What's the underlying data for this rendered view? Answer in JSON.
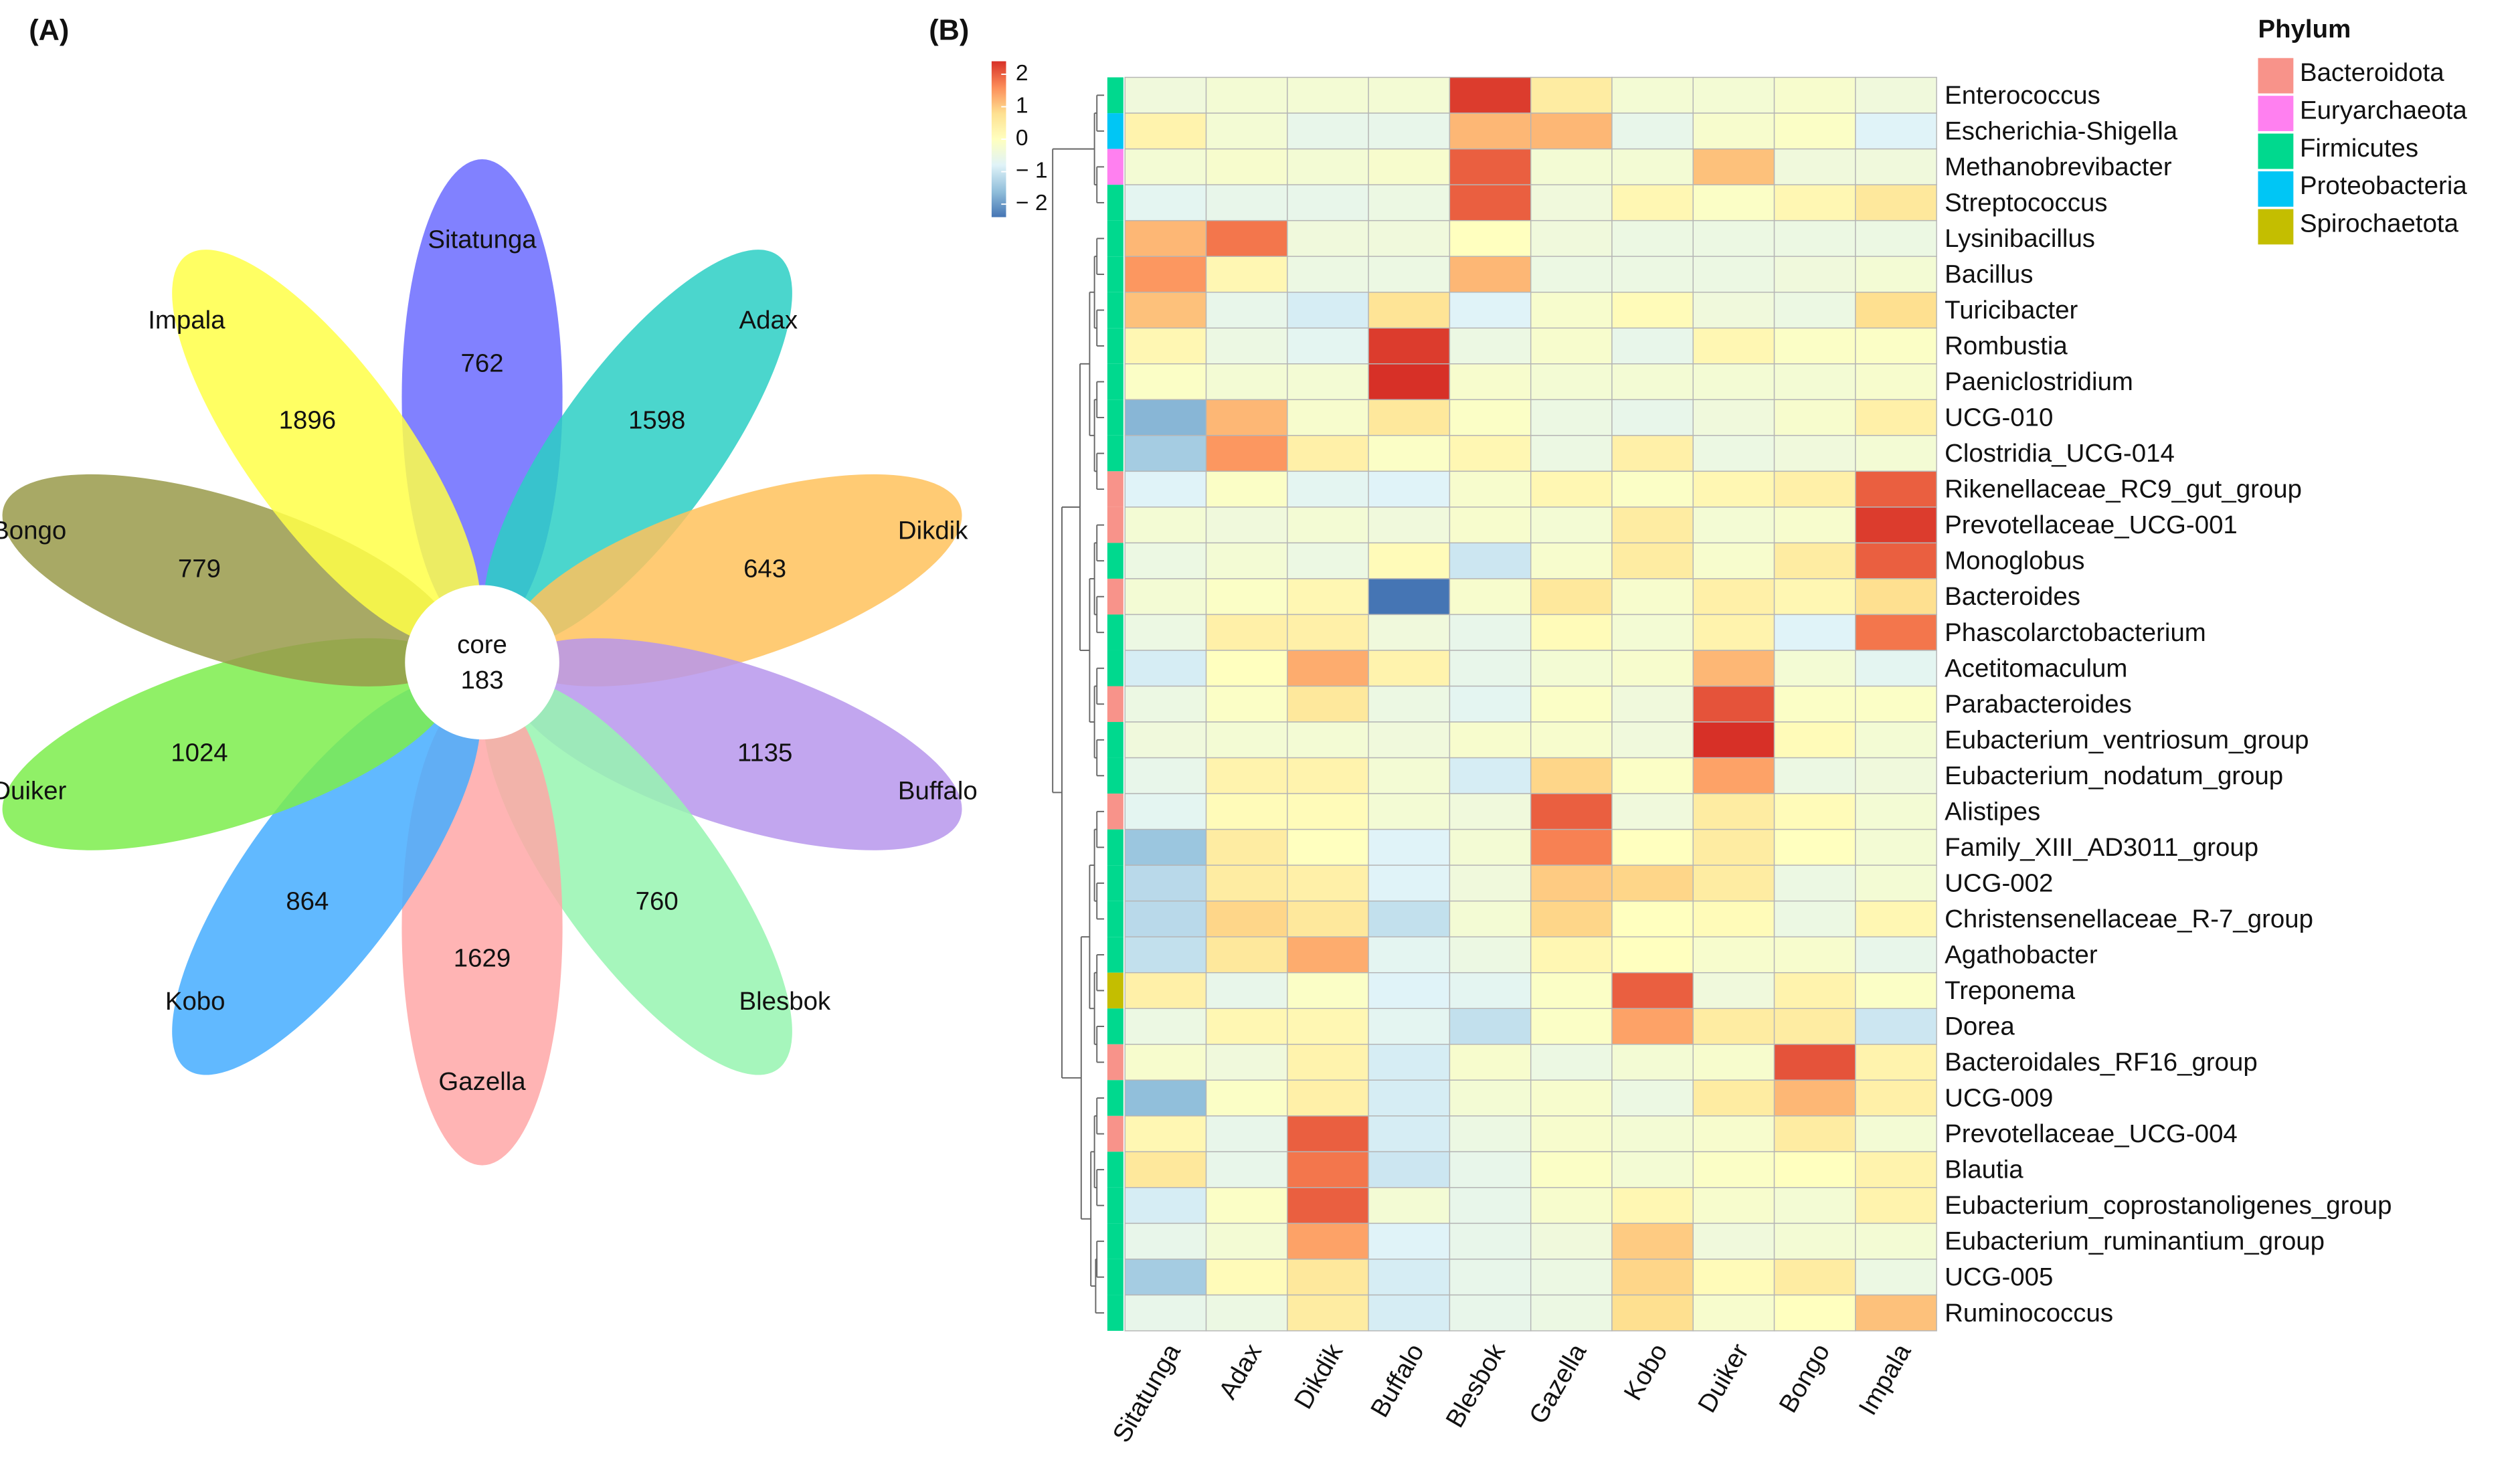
{
  "chart_data": [
    {
      "type": "flower",
      "panel_label": "(A)",
      "core_label": "core",
      "core_value": 183,
      "categories": [
        "Sitatunga",
        "Adax",
        "Dikdik",
        "Buffalo",
        "Blesbok",
        "Gazella",
        "Kobo",
        "Duiker",
        "Bongo",
        "Impala"
      ],
      "values": [
        762,
        1598,
        643,
        1135,
        760,
        1629,
        864,
        1024,
        779,
        1896
      ],
      "colors": [
        "#6b6bff",
        "#2ccfc4",
        "#ffc25c",
        "#b797ec",
        "#97f5b0",
        "#ffa7a7",
        "#45adff",
        "#7ced4c",
        "#999a4a",
        "#ffff48"
      ]
    },
    {
      "type": "heatmap",
      "panel_label": "(B)",
      "columns": [
        "Sitatunga",
        "Adax",
        "Dikdik",
        "Buffalo",
        "Blesbok",
        "Gazella",
        "Kobo",
        "Duiker",
        "Bongo",
        "Impala"
      ],
      "rows": [
        "Enterococcus",
        "Escherichia-Shigella",
        "Methanobrevibacter",
        "Streptococcus",
        "Lysinibacillus",
        "Bacillus",
        "Turicibacter",
        "Rombustia",
        "Paeniclostridium",
        "UCG-010",
        "Clostridia_UCG-014",
        "Rikenellaceae_RC9_gut_group",
        "Prevotellaceae_UCG-001",
        "Monoglobus",
        "Bacteroides",
        "Phascolarctobacterium",
        "Acetitomaculum",
        "Parabacteroides",
        "Eubacterium_ventriosum_group",
        "Eubacterium_nodatum_group",
        "Alistipes",
        "Family_XIII_AD3011_group",
        "UCG-002",
        "Christensenellaceae_R-7_group",
        "Agathobacter",
        "Treponema",
        "Dorea",
        "Bacteroidales_RF16_group",
        "UCG-009",
        "Prevotellaceae_UCG-004",
        "Blautia",
        "Eubacterium_coprostanoligenes_group",
        "Eubacterium_ruminantium_group",
        "UCG-005",
        "Ruminococcus"
      ],
      "values": [
        [
          -0.4,
          -0.3,
          -0.3,
          -0.3,
          2.3,
          0.5,
          -0.3,
          -0.3,
          -0.2,
          -0.4
        ],
        [
          0.3,
          -0.3,
          -0.6,
          -0.6,
          1.2,
          1.2,
          -0.6,
          -0.2,
          -0.1,
          -0.8
        ],
        [
          -0.3,
          -0.2,
          -0.3,
          -0.2,
          2.0,
          -0.3,
          -0.3,
          1.1,
          -0.4,
          -0.4
        ],
        [
          -0.7,
          -0.6,
          -0.6,
          -0.5,
          2.0,
          -0.4,
          0.2,
          -0.1,
          0.2,
          0.6
        ],
        [
          1.2,
          1.8,
          -0.4,
          -0.4,
          0.0,
          -0.4,
          -0.5,
          -0.5,
          -0.5,
          -0.5
        ],
        [
          1.5,
          0.2,
          -0.5,
          -0.5,
          1.2,
          -0.5,
          -0.5,
          -0.5,
          -0.4,
          -0.3
        ],
        [
          1.1,
          -0.6,
          -0.9,
          0.7,
          -0.8,
          -0.2,
          0.1,
          -0.4,
          -0.5,
          0.8
        ],
        [
          0.2,
          -0.5,
          -0.7,
          2.3,
          -0.5,
          -0.2,
          -0.6,
          0.2,
          -0.1,
          -0.1
        ],
        [
          -0.1,
          -0.3,
          -0.3,
          2.5,
          -0.2,
          -0.3,
          -0.3,
          -0.3,
          -0.3,
          -0.2
        ],
        [
          -1.7,
          1.2,
          -0.2,
          0.6,
          -0.1,
          -0.5,
          -0.6,
          -0.4,
          -0.2,
          0.4
        ],
        [
          -1.4,
          1.5,
          0.4,
          -0.1,
          0.2,
          -0.5,
          0.4,
          -0.5,
          -0.4,
          -0.3
        ],
        [
          -0.8,
          -0.1,
          -0.7,
          -0.8,
          -0.2,
          0.2,
          -0.1,
          0.2,
          0.4,
          2.0
        ],
        [
          -0.3,
          -0.4,
          -0.3,
          -0.4,
          -0.2,
          -0.3,
          0.5,
          -0.3,
          -0.2,
          2.3
        ],
        [
          -0.5,
          -0.3,
          -0.5,
          0.1,
          -1.0,
          -0.2,
          0.5,
          -0.2,
          0.5,
          2.0
        ],
        [
          -0.3,
          -0.1,
          0.2,
          -2.5,
          -0.2,
          0.6,
          -0.2,
          0.4,
          0.2,
          0.8
        ],
        [
          -0.5,
          0.4,
          0.4,
          -0.4,
          -0.6,
          0.1,
          -0.3,
          0.3,
          -0.8,
          1.8
        ],
        [
          -0.9,
          0.0,
          1.3,
          0.3,
          -0.6,
          -0.3,
          -0.2,
          1.2,
          -0.3,
          -0.7
        ],
        [
          -0.5,
          -0.1,
          0.6,
          -0.5,
          -0.7,
          -0.1,
          -0.4,
          2.1,
          -0.1,
          -0.1
        ],
        [
          -0.4,
          -0.3,
          -0.3,
          -0.4,
          -0.2,
          -0.2,
          -0.4,
          2.5,
          0.1,
          -0.3
        ],
        [
          -0.6,
          0.3,
          0.3,
          -0.3,
          -0.9,
          0.9,
          -0.1,
          1.4,
          -0.5,
          -0.4
        ],
        [
          -0.7,
          0.1,
          0.1,
          -0.3,
          -0.4,
          2.0,
          -0.4,
          0.5,
          0.1,
          -0.3
        ],
        [
          -1.5,
          0.5,
          0.0,
          -0.8,
          -0.3,
          1.7,
          0.0,
          0.5,
          0.0,
          -0.3
        ],
        [
          -1.2,
          0.5,
          0.4,
          -0.8,
          -0.4,
          1.0,
          0.9,
          0.5,
          -0.5,
          -0.3
        ],
        [
          -1.2,
          0.9,
          0.6,
          -1.1,
          -0.3,
          0.9,
          0.0,
          0.1,
          -0.5,
          0.2
        ],
        [
          -1.1,
          0.6,
          1.3,
          -0.7,
          -0.5,
          0.2,
          0.0,
          -0.2,
          -0.2,
          -0.6
        ],
        [
          0.4,
          -0.6,
          -0.1,
          -0.8,
          -0.7,
          -0.1,
          2.0,
          -0.4,
          0.3,
          -0.1
        ],
        [
          -0.5,
          0.2,
          0.2,
          -0.7,
          -1.1,
          -0.1,
          1.4,
          0.5,
          0.5,
          -1.0
        ],
        [
          -0.2,
          -0.4,
          0.3,
          -0.9,
          -0.2,
          -0.5,
          -0.3,
          -0.2,
          2.1,
          0.3
        ],
        [
          -1.6,
          -0.1,
          0.4,
          -0.9,
          -0.3,
          -0.2,
          -0.5,
          0.5,
          1.2,
          0.4
        ],
        [
          0.2,
          -0.6,
          2.0,
          -0.9,
          -0.5,
          -0.2,
          -0.3,
          -0.2,
          0.5,
          -0.3
        ],
        [
          0.6,
          -0.6,
          1.8,
          -1.0,
          -0.6,
          -0.1,
          -0.3,
          -0.1,
          0.0,
          0.3
        ],
        [
          -0.9,
          -0.1,
          2.0,
          -0.3,
          -0.6,
          -0.2,
          0.2,
          -0.2,
          -0.3,
          0.3
        ],
        [
          -0.6,
          -0.3,
          1.4,
          -0.8,
          -0.6,
          -0.4,
          1.0,
          -0.4,
          -0.3,
          -0.3
        ],
        [
          -1.4,
          0.1,
          0.6,
          -0.9,
          -0.6,
          -0.5,
          0.9,
          0.1,
          0.5,
          -0.5
        ],
        [
          -0.6,
          -0.5,
          0.5,
          -0.9,
          -0.6,
          -0.5,
          0.8,
          -0.2,
          0.0,
          1.1
        ]
      ],
      "colorlim": [
        -2.4,
        2.4
      ],
      "colorticks": [
        2,
        1,
        0,
        {
          "value": -1,
          "label": "− 1"
        },
        {
          "value": -2,
          "label": "− 2"
        }
      ],
      "palette": [
        "#4575b4",
        "#91bfdb",
        "#e0f3f8",
        "#ffffbf",
        "#fee090",
        "#fc8d59",
        "#d73027"
      ],
      "legend_title": "Phylum",
      "groups": [
        {
          "name": "Bacteroidota",
          "color": "#f8938a"
        },
        {
          "name": "Euryarchaeota",
          "color": "#ff80f0"
        },
        {
          "name": "Firmicutes",
          "color": "#00d98e"
        },
        {
          "name": "Proteobacteria",
          "color": "#00c6f5"
        },
        {
          "name": "Spirochaetota",
          "color": "#c4be00"
        }
      ],
      "row_groups": [
        "Firmicutes",
        "Proteobacteria",
        "Euryarchaeota",
        "Firmicutes",
        "Firmicutes",
        "Firmicutes",
        "Firmicutes",
        "Firmicutes",
        "Firmicutes",
        "Firmicutes",
        "Firmicutes",
        "Bacteroidota",
        "Bacteroidota",
        "Firmicutes",
        "Bacteroidota",
        "Firmicutes",
        "Firmicutes",
        "Bacteroidota",
        "Firmicutes",
        "Firmicutes",
        "Bacteroidota",
        "Firmicutes",
        "Firmicutes",
        "Firmicutes",
        "Firmicutes",
        "Spirochaetota",
        "Firmicutes",
        "Bacteroidota",
        "Firmicutes",
        "Bacteroidota",
        "Firmicutes",
        "Firmicutes",
        "Firmicutes",
        "Firmicutes",
        "Firmicutes"
      ]
    }
  ]
}
